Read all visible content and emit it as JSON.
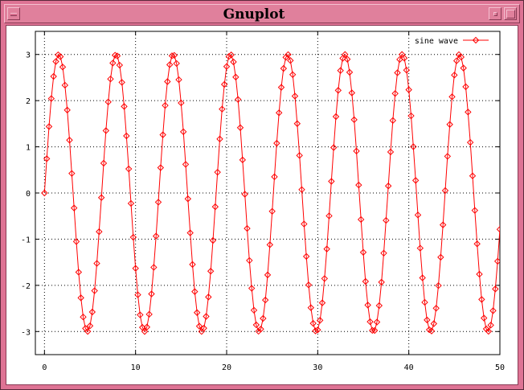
{
  "window": {
    "title": "Gnuplot"
  },
  "chart_data": {
    "type": "line",
    "series": [
      {
        "name": "sine wave",
        "color": "#ff0000",
        "marker": "diamond",
        "x_start": 0,
        "x_step": 0.25,
        "amplitude": 3,
        "function": "3*sin(x)"
      }
    ],
    "xlim": [
      -1,
      50
    ],
    "ylim": [
      -3.5,
      3.5
    ],
    "xticks": [
      "0",
      "10",
      "20",
      "30",
      "40",
      "50"
    ],
    "yticks": [
      "-3",
      "-2",
      "-1",
      "0",
      "1",
      "2",
      "3"
    ],
    "grid": true,
    "legend_position": "top-right"
  }
}
